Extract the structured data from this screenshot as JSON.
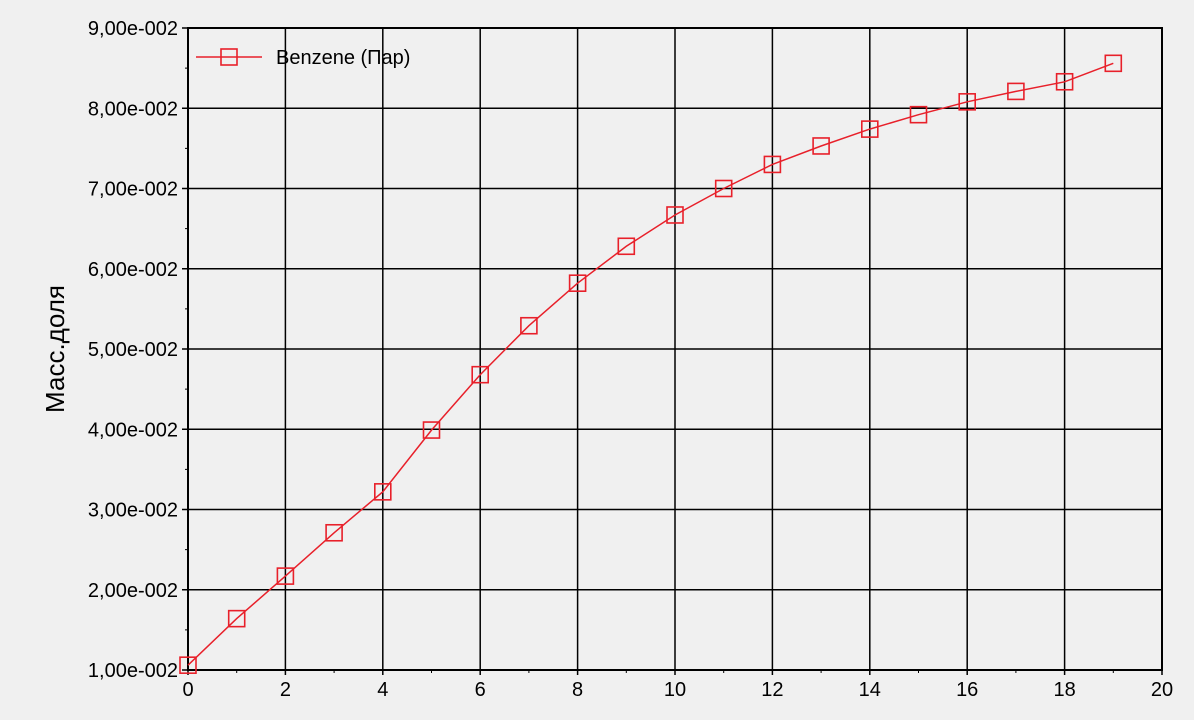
{
  "chart_data": {
    "type": "line",
    "title": "",
    "xlabel": "",
    "ylabel": "Масс.доля",
    "xlim": [
      0,
      20
    ],
    "ylim": [
      0.01,
      0.09
    ],
    "grid": true,
    "legend_position": "top-left",
    "x_ticks": [
      0,
      2,
      4,
      6,
      8,
      10,
      12,
      14,
      16,
      18,
      20
    ],
    "x_tick_labels": [
      "0",
      "2",
      "4",
      "6",
      "8",
      "10",
      "12",
      "14",
      "16",
      "18",
      "20"
    ],
    "y_ticks": [
      0.01,
      0.02,
      0.03,
      0.04,
      0.05,
      0.06,
      0.07,
      0.08,
      0.09
    ],
    "y_tick_labels": [
      "1,00e-002",
      "2,00e-002",
      "3,00e-002",
      "4,00e-002",
      "5,00e-002",
      "6,00e-002",
      "7,00e-002",
      "8,00e-002",
      "9,00e-002"
    ],
    "series": [
      {
        "name": "Benzene (Пар)",
        "color": "#e8202a",
        "marker": "square",
        "x": [
          0,
          1,
          2,
          3,
          4,
          5,
          6,
          7,
          8,
          9,
          10,
          11,
          12,
          13,
          14,
          15,
          16,
          17,
          18,
          19
        ],
        "values": [
          0.0106,
          0.0164,
          0.0217,
          0.0271,
          0.0322,
          0.0399,
          0.0468,
          0.0529,
          0.0582,
          0.0628,
          0.0667,
          0.07,
          0.073,
          0.0753,
          0.0774,
          0.0792,
          0.0808,
          0.0821,
          0.0833,
          0.0856
        ]
      }
    ]
  }
}
